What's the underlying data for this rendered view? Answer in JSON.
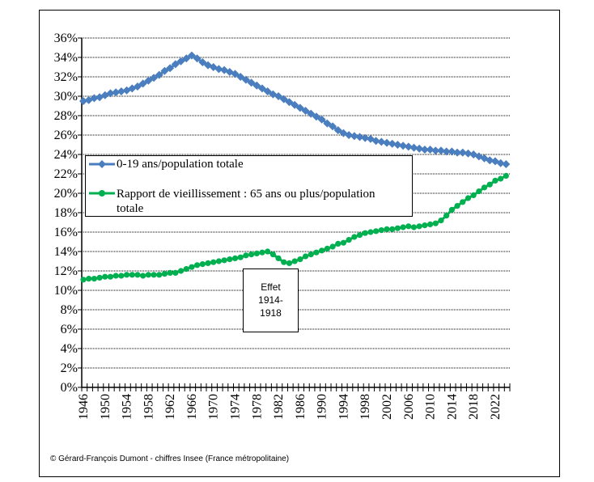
{
  "chart_data": {
    "type": "line",
    "title": "",
    "xlabel": "",
    "ylabel": "",
    "ylim": [
      0,
      36
    ],
    "ytick_step": 2,
    "x_start": 1946,
    "x_end": 2024,
    "x_label_step": 4,
    "grid": "horizontal dotted",
    "legend_placement": "center-left",
    "series": [
      {
        "name": "0-19 ans/population totale",
        "color": "#4a7ebf",
        "marker": "diamond",
        "values": [
          29.5,
          29.6,
          29.8,
          29.9,
          30.1,
          30.3,
          30.4,
          30.5,
          30.6,
          30.8,
          31.0,
          31.3,
          31.6,
          31.9,
          32.2,
          32.6,
          32.9,
          33.3,
          33.6,
          33.9,
          34.2,
          33.9,
          33.5,
          33.2,
          33.0,
          32.8,
          32.7,
          32.5,
          32.3,
          32.0,
          31.7,
          31.4,
          31.1,
          30.8,
          30.5,
          30.2,
          30.0,
          29.7,
          29.4,
          29.1,
          28.8,
          28.5,
          28.2,
          27.9,
          27.6,
          27.2,
          26.9,
          26.5,
          26.2,
          26.0,
          25.9,
          25.8,
          25.7,
          25.6,
          25.4,
          25.3,
          25.2,
          25.1,
          25.0,
          24.9,
          24.8,
          24.7,
          24.6,
          24.5,
          24.5,
          24.4,
          24.4,
          24.3,
          24.3,
          24.2,
          24.2,
          24.1,
          24.0,
          23.8,
          23.6,
          23.4,
          23.3,
          23.1,
          23.0
        ]
      },
      {
        "name": "Rapport de vieillissement : 65 ans ou plus/population totale",
        "color": "#00b050",
        "marker": "circle",
        "values": [
          11.1,
          11.2,
          11.2,
          11.3,
          11.4,
          11.4,
          11.5,
          11.5,
          11.6,
          11.6,
          11.6,
          11.5,
          11.6,
          11.6,
          11.6,
          11.7,
          11.8,
          11.8,
          12.0,
          12.2,
          12.4,
          12.6,
          12.7,
          12.8,
          12.9,
          13.0,
          13.1,
          13.2,
          13.3,
          13.4,
          13.6,
          13.7,
          13.8,
          13.9,
          14.0,
          13.7,
          13.3,
          12.9,
          12.8,
          13.0,
          13.2,
          13.5,
          13.7,
          13.9,
          14.1,
          14.3,
          14.5,
          14.8,
          14.9,
          15.2,
          15.5,
          15.7,
          15.9,
          16.0,
          16.1,
          16.2,
          16.3,
          16.3,
          16.4,
          16.5,
          16.6,
          16.5,
          16.6,
          16.7,
          16.8,
          16.9,
          17.2,
          17.7,
          18.3,
          18.7,
          19.1,
          19.5,
          19.8,
          20.2,
          20.6,
          20.9,
          21.3,
          21.5,
          21.8
        ]
      }
    ],
    "legend": {
      "line1": "0-19 ans/population totale",
      "line2a": "Rapport de vieillissement : 65 ans ou plus/population",
      "line2b": "totale"
    },
    "annotation": {
      "line1": "Effet",
      "line2": "1914-",
      "line3": "1918"
    }
  },
  "footer": "© Gérard-François Dumont - chiffres Insee (France métropolitaine)"
}
